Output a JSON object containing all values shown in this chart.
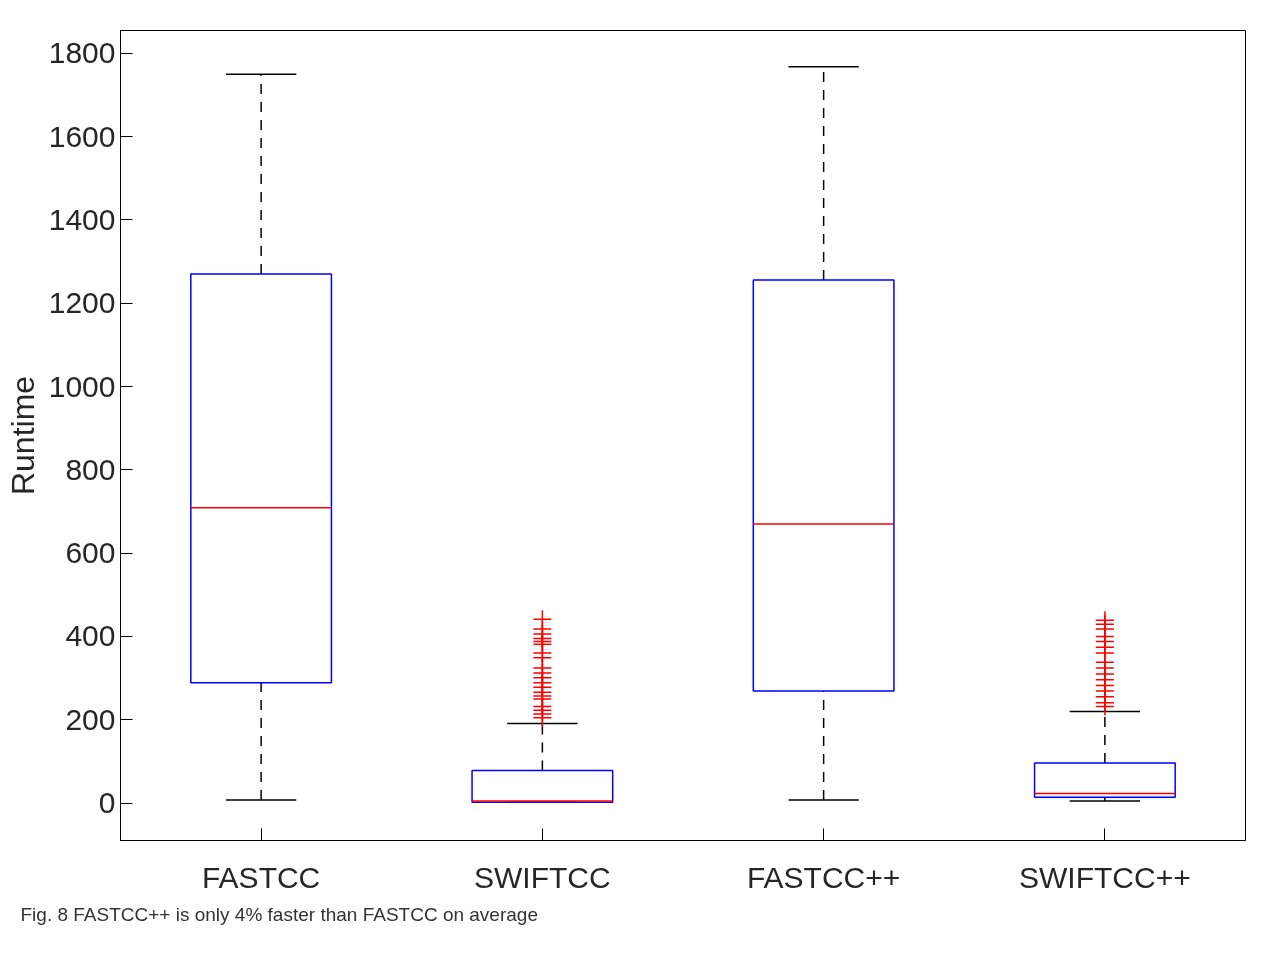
{
  "chart_data": {
    "type": "box",
    "ylabel": "Runtime",
    "categories": [
      "FASTCC",
      "SWIFTCC",
      "FASTCC++",
      "SWIFTCC++"
    ],
    "ylim": [
      -90,
      1855
    ],
    "yticks": [
      0,
      200,
      400,
      600,
      800,
      1000,
      1200,
      1400,
      1600,
      1800
    ],
    "grid": false,
    "series": [
      {
        "color": "#0000ff",
        "boxes": [
          {
            "low": 7,
            "q1": 289,
            "median": 709,
            "q3": 1270,
            "high": 1750
          },
          {
            "low": 2,
            "q1": 2,
            "median": 5,
            "q3": 78,
            "high": 191,
            "outliers": [
              441,
              418,
              406,
              395,
              388,
              381,
              360,
              349,
              324,
              312,
              301,
              289,
              278,
              266,
              257,
              250,
              232,
              223,
              214,
              205
            ]
          },
          {
            "low": 7,
            "q1": 269,
            "median": 670,
            "q3": 1256,
            "high": 1768
          },
          {
            "low": 5,
            "q1": 14,
            "median": 23,
            "q3": 96,
            "high": 220,
            "outliers": [
              439,
              429,
              418,
              400,
              388,
              374,
              360,
              338,
              324,
              310,
              296,
              282,
              269,
              255,
              241,
              232
            ]
          }
        ]
      }
    ],
    "annotations": [
      "Fig. 8 FASTCC++ is only 4% faster than FASTCC on average"
    ]
  }
}
